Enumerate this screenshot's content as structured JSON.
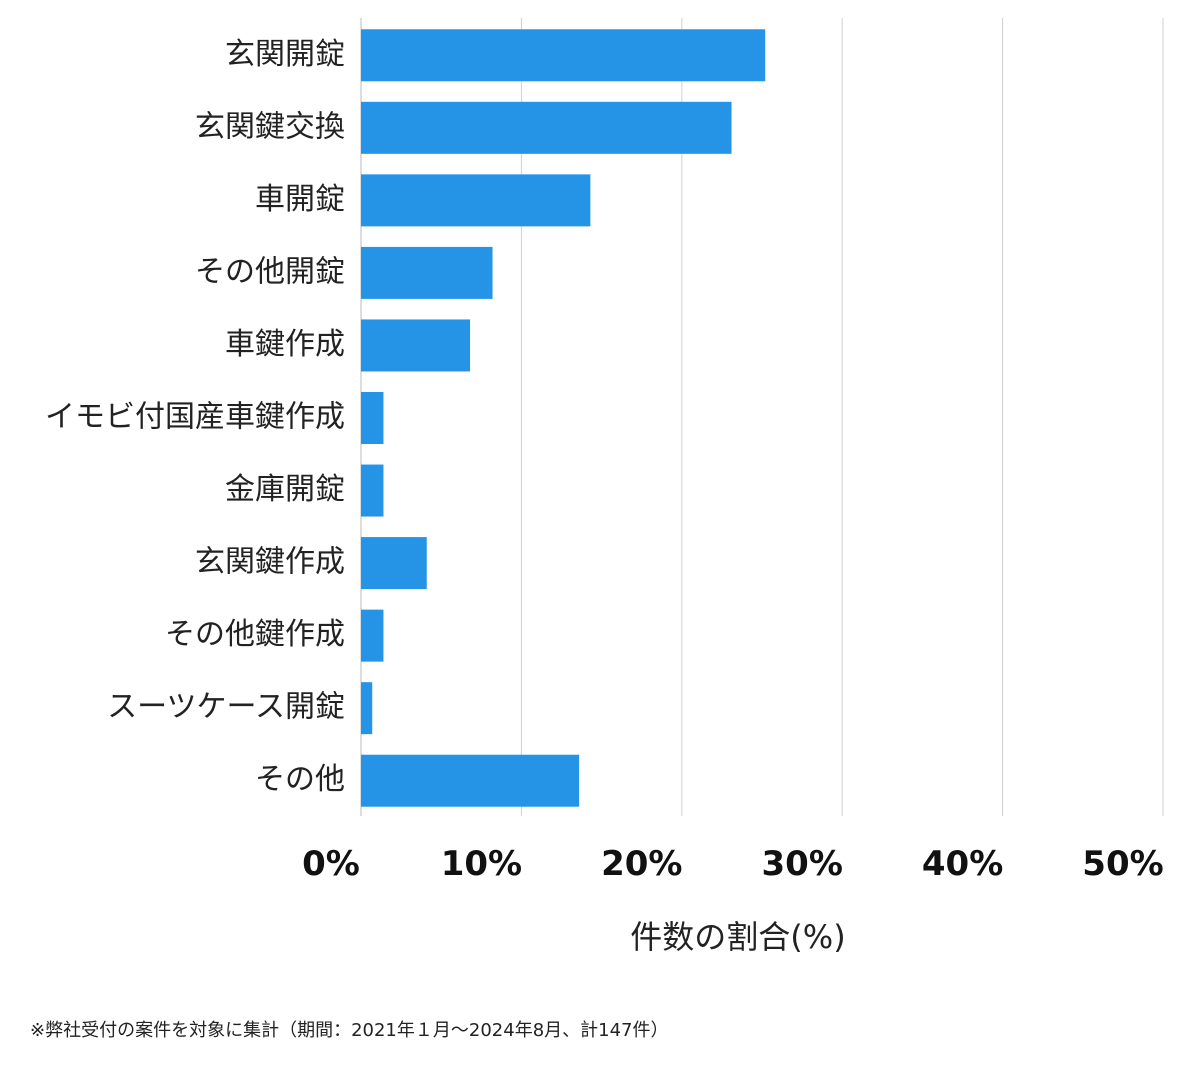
{
  "chart_data": {
    "type": "bar",
    "orientation": "horizontal",
    "categories": [
      "玄関開錠",
      "玄関鍵交換",
      "車開錠",
      "その他開錠",
      "車鍵作成",
      "イモビ付国産車鍵作成",
      "金庫開錠",
      "玄関鍵作成",
      "その他鍵作成",
      "スーツケース開錠",
      "その他"
    ],
    "values": [
      25.2,
      23.1,
      14.3,
      8.2,
      6.8,
      1.4,
      1.4,
      4.1,
      1.4,
      0.7,
      13.6
    ],
    "xlabel": "件数の割合(%)",
    "ylabel": "",
    "xlim": [
      0,
      50
    ],
    "xticks": [
      0,
      10,
      20,
      30,
      40,
      50
    ],
    "xtick_labels": [
      "0%",
      "10%",
      "20%",
      "30%",
      "40%",
      "50%"
    ],
    "grid": true,
    "bar_color": "#2594e6",
    "grid_color": "#d0d0d0"
  },
  "footnote": "※弊社受付の案件を対象に集計（期間：2021年１月〜2024年8月、計147件）"
}
